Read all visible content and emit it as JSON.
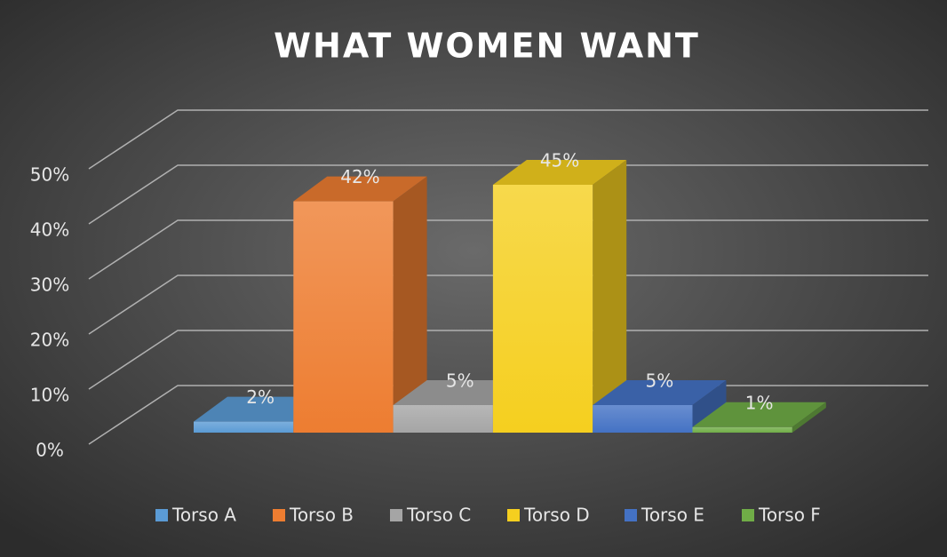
{
  "chart_data": {
    "type": "bar3d",
    "title": "WHAT WOMEN WANT",
    "series": [
      {
        "name": "Torso A",
        "color": "#5b9bd5",
        "values": [
          2
        ],
        "value_labels": [
          "2%"
        ]
      },
      {
        "name": "Torso B",
        "color": "#ed7d31",
        "values": [
          42
        ],
        "value_labels": [
          "42%"
        ]
      },
      {
        "name": "Torso C",
        "color": "#a5a5a5",
        "values": [
          5
        ],
        "value_labels": [
          "5%"
        ]
      },
      {
        "name": "Torso D",
        "color": "#f5cf1f",
        "values": [
          45
        ],
        "value_labels": [
          "45%"
        ]
      },
      {
        "name": "Torso E",
        "color": "#4472c4",
        "values": [
          5
        ],
        "value_labels": [
          "5%"
        ]
      },
      {
        "name": "Torso F",
        "color": "#70ad47",
        "values": [
          1
        ],
        "value_labels": [
          "1%"
        ]
      }
    ],
    "ylim": [
      0,
      50
    ],
    "yticks": [
      {
        "value": 0,
        "label": "0%"
      },
      {
        "value": 10,
        "label": "10%"
      },
      {
        "value": 20,
        "label": "20%"
      },
      {
        "value": 30,
        "label": "30%"
      },
      {
        "value": 40,
        "label": "40%"
      },
      {
        "value": 50,
        "label": "50%"
      }
    ],
    "grid": true,
    "legend": "bottom"
  }
}
